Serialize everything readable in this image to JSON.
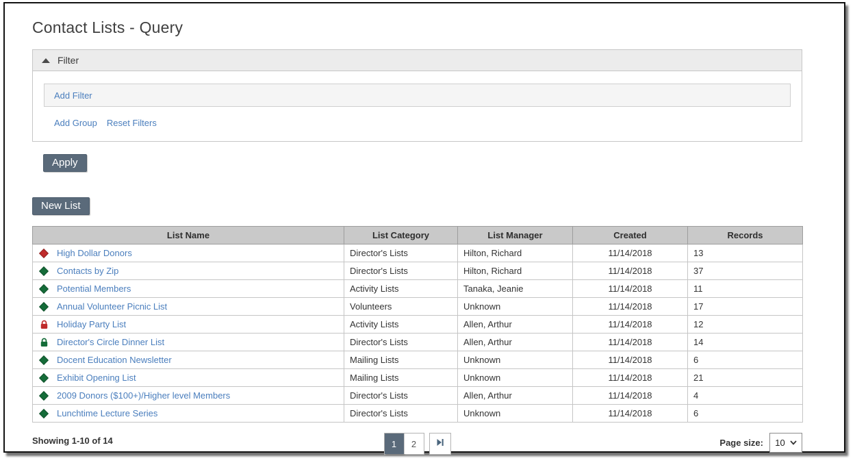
{
  "page": {
    "title": "Contact Lists - Query"
  },
  "filter": {
    "header_label": "Filter",
    "add_filter_label": "Add Filter",
    "add_group_label": "Add Group",
    "reset_filters_label": "Reset Filters",
    "apply_label": "Apply"
  },
  "toolbar": {
    "new_list_label": "New List"
  },
  "table": {
    "columns": [
      "List Name",
      "List Category",
      "List Manager",
      "Created",
      "Records"
    ],
    "rows": [
      {
        "icon": "red-diamond",
        "name": "High Dollar Donors",
        "category": "Director's Lists",
        "manager": "Hilton, Richard",
        "created": "11/14/2018",
        "records": "13"
      },
      {
        "icon": "green-diamond",
        "name": "Contacts by Zip",
        "category": "Director's Lists",
        "manager": "Hilton, Richard",
        "created": "11/14/2018",
        "records": "37"
      },
      {
        "icon": "green-diamond",
        "name": "Potential Members",
        "category": "Activity Lists",
        "manager": "Tanaka, Jeanie",
        "created": "11/14/2018",
        "records": "11"
      },
      {
        "icon": "green-diamond",
        "name": "Annual Volunteer Picnic List",
        "category": "Volunteers",
        "manager": "Unknown",
        "created": "11/14/2018",
        "records": "17"
      },
      {
        "icon": "red-lock",
        "name": "Holiday Party List",
        "category": "Activity Lists",
        "manager": "Allen, Arthur",
        "created": "11/14/2018",
        "records": "12"
      },
      {
        "icon": "green-lock",
        "name": "Director's Circle Dinner List",
        "category": "Director's Lists",
        "manager": "Allen, Arthur",
        "created": "11/14/2018",
        "records": "14"
      },
      {
        "icon": "green-diamond",
        "name": "Docent Education Newsletter",
        "category": "Mailing Lists",
        "manager": "Unknown",
        "created": "11/14/2018",
        "records": "6"
      },
      {
        "icon": "green-diamond",
        "name": "Exhibit Opening List",
        "category": "Mailing Lists",
        "manager": "Unknown",
        "created": "11/14/2018",
        "records": "21"
      },
      {
        "icon": "green-diamond",
        "name": "2009 Donors ($100+)/Higher level Members",
        "category": "Director's Lists",
        "manager": "Allen, Arthur",
        "created": "11/14/2018",
        "records": "4"
      },
      {
        "icon": "green-diamond",
        "name": "Lunchtime Lecture Series",
        "category": "Director's Lists",
        "manager": "Unknown",
        "created": "11/14/2018",
        "records": "6"
      }
    ]
  },
  "footer": {
    "showing_text": "Showing 1-10 of 14",
    "pages": [
      "1",
      "2"
    ],
    "active_page": "1",
    "last_page_icon": "skip-to-last-page",
    "page_size_label": "Page size:",
    "page_size_value": "10"
  },
  "colors": {
    "link_blue": "#4a7ebd",
    "slate_button": "#5a6a7a",
    "icon_red": "#bf2b2b",
    "icon_green": "#156c39",
    "table_header_bg": "#c9c9c9"
  }
}
